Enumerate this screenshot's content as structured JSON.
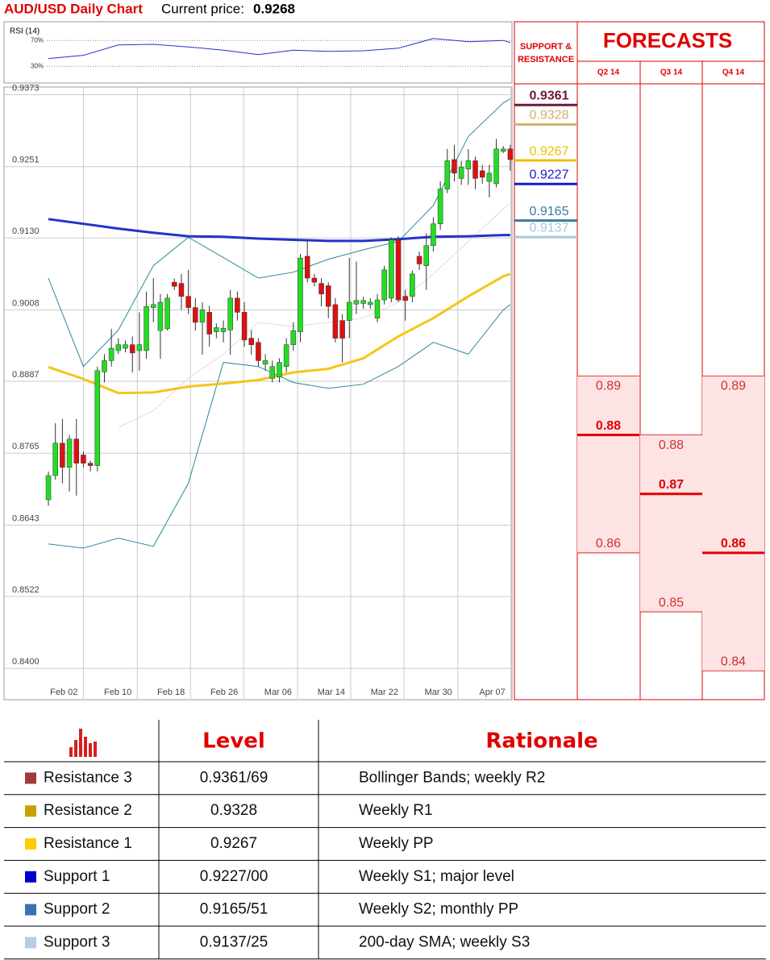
{
  "title": "AUD/USD Daily Chart",
  "current_price_label": "Current price:",
  "current_price": 0.9268,
  "chart_data": [
    {
      "type": "line",
      "title": "RSI (14)",
      "color": "#2233cc",
      "x": [
        0,
        5,
        10,
        15,
        20,
        25,
        30,
        35,
        40,
        45,
        50,
        55,
        60,
        65,
        66
      ],
      "values": [
        42,
        47,
        63,
        64,
        60,
        55,
        48,
        55,
        53,
        54,
        58,
        73,
        68,
        70,
        67
      ],
      "xlim": [
        -6.34,
        66.24
      ],
      "ylim": [
        4,
        99
      ],
      "yticks": [
        {
          "value": 70,
          "label": "70%"
        },
        {
          "value": 30,
          "label": "30%"
        }
      ]
    },
    {
      "type": "candlestick",
      "up_color": "#22dd22",
      "down_color": "#dd1111",
      "open": [
        0.8686,
        0.8727,
        0.8782,
        0.8741,
        0.8789,
        0.8762,
        0.8748,
        0.8744,
        0.8903,
        0.8922,
        0.8939,
        0.8943,
        0.8949,
        0.8939,
        0.8939,
        0.9012,
        0.8973,
        0.8976,
        0.9055,
        0.9053,
        0.9031,
        0.9012,
        0.8987,
        0.9004,
        0.8971,
        0.8971,
        0.8974,
        0.9028,
        0.9004,
        0.896,
        0.8953,
        0.8916,
        0.8892,
        0.8894,
        0.8912,
        0.8949,
        0.8971,
        0.9099,
        0.9062,
        0.9053,
        0.9049,
        0.9017,
        0.899,
        0.899,
        0.9018,
        0.9019,
        0.9017,
        0.8994,
        0.9025,
        0.9028,
        0.9127,
        0.9031,
        0.9031,
        0.9099,
        0.9083,
        0.9117,
        0.9154,
        0.9213,
        0.9263,
        0.9231,
        0.9247,
        0.9261,
        0.9244,
        0.9226,
        0.9222,
        0.9277,
        0.9281
      ],
      "high": [
        0.8734,
        0.8816,
        0.8823,
        0.8796,
        0.8823,
        0.8768,
        0.8752,
        0.8912,
        0.8933,
        0.8976,
        0.896,
        0.8956,
        0.8963,
        0.9004,
        0.9039,
        0.9062,
        0.9035,
        0.9035,
        0.9061,
        0.9069,
        0.9076,
        0.9028,
        0.9021,
        0.9015,
        0.8985,
        0.899,
        0.9042,
        0.9039,
        0.9021,
        0.8974,
        0.896,
        0.8933,
        0.8922,
        0.8926,
        0.896,
        0.8987,
        0.9103,
        0.9127,
        0.9069,
        0.9062,
        0.9055,
        0.9028,
        0.9001,
        0.9096,
        0.909,
        0.903,
        0.9028,
        0.9035,
        0.9083,
        0.9131,
        0.9133,
        0.9042,
        0.9075,
        0.9107,
        0.9138,
        0.9165,
        0.9226,
        0.9281,
        0.9288,
        0.9261,
        0.9281,
        0.9268,
        0.9254,
        0.9254,
        0.9298,
        0.9286,
        0.9288
      ],
      "low": [
        0.8676,
        0.872,
        0.8714,
        0.87,
        0.8693,
        0.8741,
        0.8734,
        0.8734,
        0.8885,
        0.8912,
        0.8933,
        0.8936,
        0.8902,
        0.8905,
        0.8925,
        0.8987,
        0.8925,
        0.8973,
        0.9042,
        0.9008,
        0.9001,
        0.8973,
        0.8932,
        0.8946,
        0.896,
        0.8953,
        0.8932,
        0.899,
        0.8946,
        0.8932,
        0.8912,
        0.8905,
        0.8885,
        0.8885,
        0.8902,
        0.8939,
        0.8953,
        0.9055,
        0.9048,
        0.9014,
        0.8994,
        0.8953,
        0.8919,
        0.896,
        0.9001,
        0.901,
        0.901,
        0.8987,
        0.9017,
        0.9021,
        0.9021,
        0.899,
        0.9021,
        0.9076,
        0.9042,
        0.9107,
        0.9144,
        0.9206,
        0.9226,
        0.922,
        0.922,
        0.9213,
        0.9222,
        0.9199,
        0.9216,
        0.9274,
        0.9244
      ],
      "close": [
        0.8727,
        0.8782,
        0.8741,
        0.8789,
        0.8748,
        0.8748,
        0.8744,
        0.8905,
        0.8922,
        0.8943,
        0.8949,
        0.8949,
        0.8935,
        0.8949,
        0.9014,
        0.9017,
        0.9021,
        0.9028,
        0.9048,
        0.9031,
        0.9012,
        0.8987,
        0.9008,
        0.8967,
        0.8978,
        0.8977,
        0.9028,
        0.9004,
        0.8957,
        0.8949,
        0.8922,
        0.8922,
        0.8912,
        0.8919,
        0.8949,
        0.8973,
        0.9096,
        0.9062,
        0.9055,
        0.9035,
        0.9014,
        0.896,
        0.896,
        0.9021,
        0.9024,
        0.9024,
        0.9021,
        0.9025,
        0.9076,
        0.9127,
        0.9025,
        0.9024,
        0.9069,
        0.9086,
        0.9117,
        0.9154,
        0.9213,
        0.9261,
        0.924,
        0.925,
        0.9261,
        0.9231,
        0.9233,
        0.924,
        0.9281,
        0.9281,
        0.9263
      ],
      "xlim": [
        -6.34,
        66.24
      ],
      "ylim": [
        0.8347,
        0.9386
      ],
      "xticks": [
        {
          "value": 5,
          "label": "Feb 02"
        },
        {
          "value": 12.7,
          "label": "Feb 10"
        },
        {
          "value": 20.3,
          "label": "Feb 18"
        },
        {
          "value": 27.9,
          "label": "Feb 26"
        },
        {
          "value": 35.6,
          "label": "Mar 06"
        },
        {
          "value": 43.2,
          "label": "Mar 14"
        },
        {
          "value": 50.8,
          "label": "Mar 22"
        },
        {
          "value": 58.5,
          "label": "Mar 30"
        },
        {
          "value": 66.1,
          "label": "Apr 07"
        }
      ],
      "yticks": [
        0.9373,
        0.9251,
        {
          "value": 0.913,
          "label": "0.9130"
        },
        0.9008,
        0.8887,
        0.8765,
        0.8643,
        0.8522,
        {
          "value": 0.84,
          "label": "0.8400"
        }
      ],
      "grid": true,
      "overlays": {
        "x": [
          0,
          5,
          10,
          15,
          20,
          25,
          30,
          35,
          40,
          45,
          50,
          55,
          60,
          65,
          66
        ],
        "series": [
          {
            "color": "#dddddd",
            "line_width": 1,
            "values": [
              null,
              null,
              0.8809,
              0.8837,
              0.8892,
              0.8933,
              0.8987,
              0.898,
              0.8987,
              0.8994,
              0.9021,
              0.9069,
              0.9124,
              0.9179,
              0.9189
            ]
          },
          {
            "color": "#2a8a9a",
            "line_width": 1,
            "values": [
              0.9062,
              0.8912,
              0.8974,
              0.9083,
              0.9131,
              0.9097,
              0.9062,
              0.9072,
              0.9094,
              0.911,
              0.9124,
              0.9185,
              0.9302,
              0.9359,
              0.9366
            ]
          },
          {
            "color": "#2a8a9a",
            "line_width": 1,
            "values": [
              0.8611,
              0.8604,
              0.8621,
              0.8607,
              0.8714,
              0.8919,
              0.8912,
              0.8885,
              0.8875,
              0.8882,
              0.8912,
              0.8953,
              0.8933,
              0.9008,
              0.9017
            ]
          },
          {
            "color": "#f5c518",
            "line_width": 3,
            "values": [
              0.8911,
              0.8891,
              0.8867,
              0.8868,
              0.8878,
              0.8883,
              0.8889,
              0.8902,
              0.8908,
              0.8926,
              0.8963,
              0.8994,
              0.9031,
              0.9065,
              0.9069
            ]
          },
          {
            "color": "#2233cc",
            "line_width": 3,
            "values": [
              0.9162,
              0.9154,
              0.9146,
              0.9139,
              0.9133,
              0.9132,
              0.9129,
              0.9127,
              0.9125,
              0.9125,
              0.9128,
              0.9132,
              0.9133,
              0.9135,
              0.9135
            ]
          }
        ]
      }
    }
  ],
  "levels_panel": {
    "title": "SUPPORT & RESISTANCE",
    "levels": [
      {
        "value": 0.9361,
        "color": "#6b1a3a"
      },
      {
        "value": 0.9328,
        "color": "#d4b06a"
      },
      {
        "value": 0.9267,
        "color": "#f0c000"
      },
      {
        "value": 0.9227,
        "color": "#1a1acc"
      },
      {
        "value": 0.9165,
        "color": "#3a7aa0"
      },
      {
        "value": 0.9137,
        "color": "#a8c8d8"
      }
    ]
  },
  "forecasts": {
    "title": "FORECASTS",
    "fill": "#fde3e3",
    "color": "#e00000",
    "columns": [
      {
        "name": "Q2 14",
        "high": 0.89,
        "median": 0.88,
        "low": 0.86
      },
      {
        "name": "Q3 14",
        "high": 0.88,
        "median": 0.87,
        "low": 0.85
      },
      {
        "name": "Q4 14",
        "high": 0.89,
        "median": 0.86,
        "low": 0.84
      }
    ]
  },
  "table": {
    "header": [
      "Level",
      "Rationale"
    ],
    "rows": [
      {
        "name": "Resistance 3",
        "color": "#a03a3a",
        "level": "0.9361/69",
        "rationale": "Bollinger Bands; weekly R2"
      },
      {
        "name": "Resistance 2",
        "color": "#c8a000",
        "level": "0.9328",
        "rationale": "Weekly R1"
      },
      {
        "name": "Resistance 1",
        "color": "#ffcc00",
        "level": "0.9267",
        "rationale": "Weekly PP"
      },
      {
        "name": "Support 1",
        "color": "#0000cc",
        "level": "0.9227/00",
        "rationale": "Weekly S1; major level"
      },
      {
        "name": "Support 2",
        "color": "#3a6fb5",
        "level": "0.9165/51",
        "rationale": "Weekly S2; monthly PP"
      },
      {
        "name": "Support 3",
        "color": "#b8cce4",
        "level": "0.9137/25",
        "rationale": "200-day SMA; weekly S3"
      }
    ]
  }
}
